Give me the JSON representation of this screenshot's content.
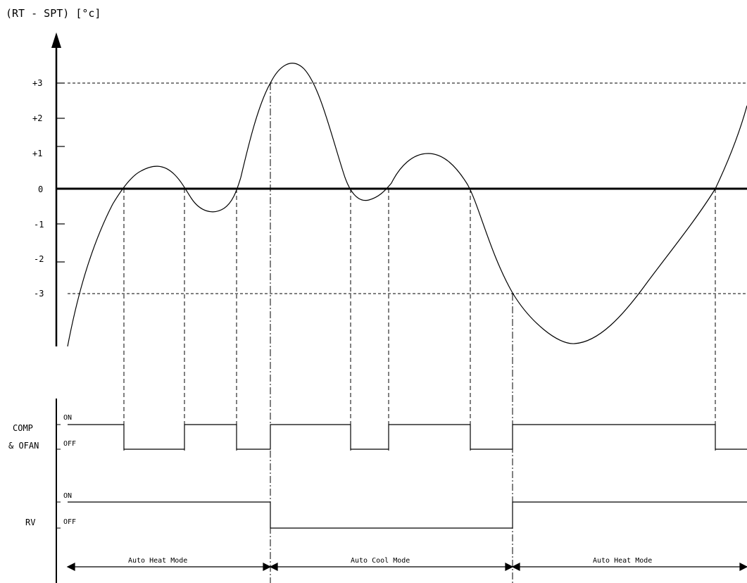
{
  "y_axis_label": "(RT - SPT) [°c]",
  "y_ticks": [
    "+3",
    "+2",
    "+1",
    "0",
    "-1",
    "-2",
    "-3"
  ],
  "comp_label_line1": "COMP",
  "comp_label_line2": "& OFAN",
  "rv_label": "RV",
  "on_label": "ON",
  "off_label": "OFF",
  "modes": [
    "Auto Heat Mode",
    "Auto Cool Mode",
    "Auto Heat Mode"
  ],
  "colors": {
    "line": "#000000",
    "background": "#ffffff"
  }
}
